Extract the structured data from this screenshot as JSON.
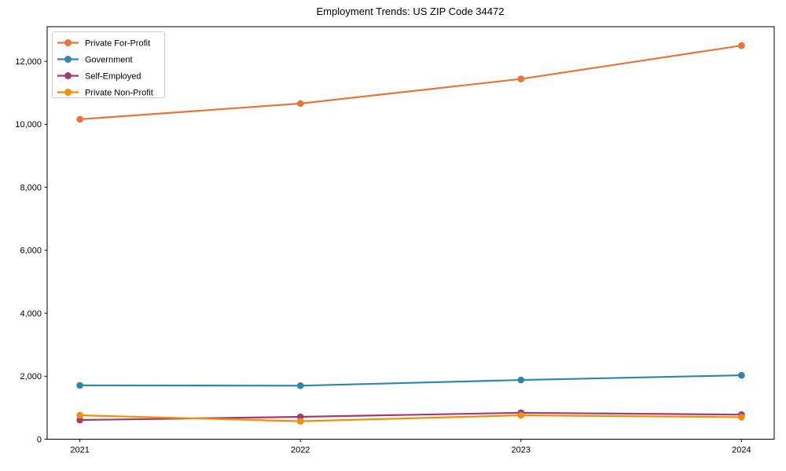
{
  "chart_data": {
    "type": "line",
    "title": "Employment Trends: US ZIP Code 34472",
    "x_categories": [
      "2021",
      "2022",
      "2023",
      "2024"
    ],
    "series": [
      {
        "name": "Private For-Profit",
        "color": "#E8743B",
        "values": [
          10160,
          10660,
          11440,
          12500
        ]
      },
      {
        "name": "Government",
        "color": "#2E86AB",
        "values": [
          1710,
          1700,
          1880,
          2030
        ]
      },
      {
        "name": "Self-Employed",
        "color": "#A23B72",
        "values": [
          610,
          710,
          840,
          780
        ]
      },
      {
        "name": "Private Non-Profit",
        "color": "#F18F01",
        "values": [
          760,
          570,
          760,
          700
        ]
      }
    ],
    "xlabel": "",
    "ylabel": "",
    "ylim": [
      0,
      13100
    ],
    "yticks": [
      0,
      2000,
      4000,
      6000,
      8000,
      10000,
      12000
    ],
    "ytick_labels": [
      "0",
      "2,000",
      "4,000",
      "6,000",
      "8,000",
      "10,000",
      "12,000"
    ],
    "grid": false,
    "legend_position": "upper left",
    "marker": "circle",
    "line_style": "solid",
    "background_color": "#ffffff",
    "axis_color": "#000000",
    "legend_border_color": "#cccccc"
  }
}
